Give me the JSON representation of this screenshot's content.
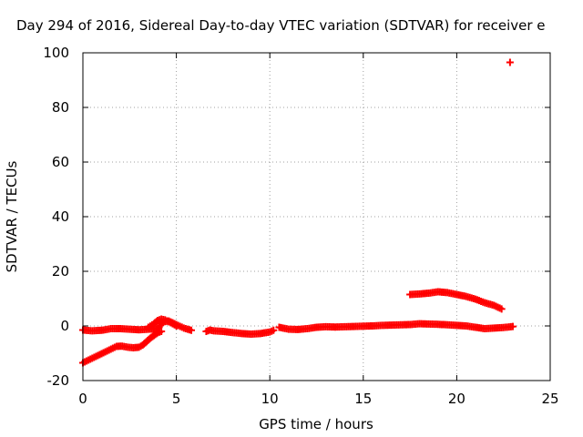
{
  "chart_data": {
    "type": "scatter",
    "title": "Day 294 of 2016, Sidereal Day-to-day VTEC variation (SDTVAR) for receiver e",
    "xlabel": "GPS time / hours",
    "ylabel": "SDTVAR / TECUs",
    "xlim": [
      0,
      25
    ],
    "ylim": [
      -20,
      100
    ],
    "xticks": [
      0,
      5,
      10,
      15,
      20,
      25
    ],
    "yticks": [
      -20,
      0,
      20,
      40,
      60,
      80,
      100
    ],
    "grid": true,
    "legend": "none",
    "marker": "plus",
    "color": "#ff0000",
    "series": [
      {
        "segments": [
          {
            "x": [
              0.0,
              0.5,
              1.0,
              1.5,
              2.0,
              2.5,
              3.0,
              3.5,
              4.0,
              4.3,
              4.6,
              5.0,
              5.4,
              5.8
            ],
            "y": [
              -1.5,
              -1.8,
              -1.6,
              -1.0,
              -1.0,
              -1.2,
              -1.4,
              -1.2,
              -1.0,
              1.5,
              1.8,
              0.5,
              -0.8,
              -1.6
            ]
          },
          {
            "x": [
              0.0,
              0.3,
              0.6,
              0.9,
              1.2,
              1.5,
              1.8,
              2.1,
              2.4,
              2.7,
              3.0,
              3.2,
              3.4,
              3.6,
              3.8,
              4.0,
              4.2
            ],
            "y": [
              -13.5,
              -12.5,
              -11.5,
              -10.5,
              -9.5,
              -8.5,
              -7.5,
              -7.4,
              -7.8,
              -8.0,
              -7.8,
              -7.0,
              -5.8,
              -4.5,
              -3.5,
              -2.5,
              -2.0
            ]
          },
          {
            "x": [
              3.5,
              3.8,
              4.0,
              4.2,
              4.4,
              4.6,
              4.8,
              5.0
            ],
            "y": [
              -0.5,
              0.8,
              2.0,
              2.5,
              2.2,
              1.5,
              0.8,
              0.0
            ]
          },
          {
            "x": [
              6.6,
              6.8,
              7.0,
              7.5,
              8.0,
              8.5,
              9.0,
              9.5,
              10.0,
              10.2
            ],
            "y": [
              -2.0,
              -1.5,
              -1.8,
              -2.0,
              -2.4,
              -2.8,
              -3.0,
              -2.8,
              -2.2,
              -1.6
            ]
          },
          {
            "x": [
              10.5,
              11.0,
              11.5,
              12.0,
              12.5,
              13.0,
              13.5,
              14.0,
              14.5,
              15.0,
              15.5,
              16.0,
              16.5,
              17.0,
              17.5,
              18.0,
              18.5,
              19.0,
              19.5,
              20.0,
              20.5,
              21.0,
              21.5,
              22.0,
              22.5,
              23.0
            ],
            "y": [
              -0.5,
              -1.2,
              -1.3,
              -1.0,
              -0.5,
              -0.3,
              -0.4,
              -0.3,
              -0.2,
              -0.1,
              0.0,
              0.2,
              0.3,
              0.4,
              0.5,
              0.8,
              0.7,
              0.6,
              0.4,
              0.2,
              0.0,
              -0.5,
              -1.0,
              -0.8,
              -0.6,
              -0.2
            ]
          },
          {
            "x": [
              17.5,
              18.0,
              18.5,
              19.0,
              19.5,
              20.0,
              20.5,
              21.0,
              21.5,
              22.0,
              22.4
            ],
            "y": [
              11.5,
              11.7,
              12.0,
              12.5,
              12.2,
              11.5,
              10.8,
              9.8,
              8.5,
              7.5,
              6.2
            ]
          }
        ],
        "points": [
          {
            "x": 22.85,
            "y": 96.5
          }
        ]
      }
    ]
  }
}
